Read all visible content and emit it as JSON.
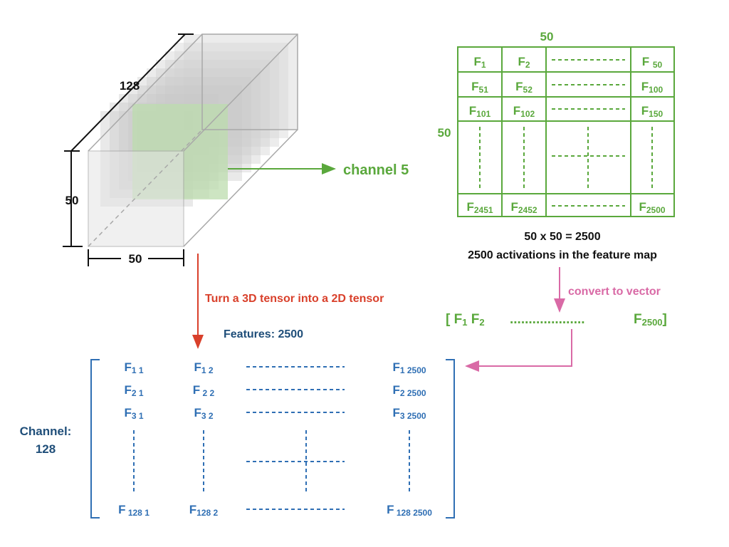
{
  "colors": {
    "green": "#5aa83c",
    "blue": "#2f6fb4",
    "navy": "#1f4e79",
    "red": "#d9402b",
    "pink": "#d96aa6",
    "black": "#111111",
    "cube_edge": "#a8a8a8",
    "slice": "#cfe8c4"
  },
  "tensor": {
    "depth_label": "128",
    "height_label": "50",
    "width_label": "50",
    "channel_label": "channel 5"
  },
  "feature_map": {
    "top_label": "50",
    "side_label": "50",
    "rows": [
      [
        "F",
        "1",
        "F",
        "2",
        "F ",
        "50"
      ],
      [
        "F",
        "51",
        "F",
        "52",
        "F",
        "100"
      ],
      [
        "F",
        "101",
        "F",
        "102",
        "F",
        "150"
      ],
      [
        "F",
        "2451",
        "F",
        "2452",
        "F",
        "2500"
      ]
    ],
    "caption_line1": "50 x 50 = 2500",
    "caption_line2": "2500 activations in the feature map"
  },
  "vector": {
    "convert_label": "convert to vector",
    "open": "[ F",
    "s1": "1",
    "mid": " F",
    "s2": "2",
    "dots": "....................",
    "last": "F",
    "s3": "2500",
    "close": "]"
  },
  "matrix": {
    "arrow_label": "Turn a 3D tensor into a 2D tensor",
    "features_label": "Features: 2500",
    "channel_label_line1": "Channel:",
    "channel_label_line2": "128",
    "rows": [
      [
        "F",
        "1 1",
        "F",
        "1 2",
        "F",
        "1 2500"
      ],
      [
        "F",
        "2 1",
        "F",
        " 2 2",
        "F",
        "2 2500"
      ],
      [
        "F",
        "3 1",
        "F",
        "3 2",
        "F",
        "3 2500"
      ],
      [
        "F",
        " 128 1",
        "F",
        "128 2",
        "F",
        " 128 2500"
      ]
    ]
  }
}
